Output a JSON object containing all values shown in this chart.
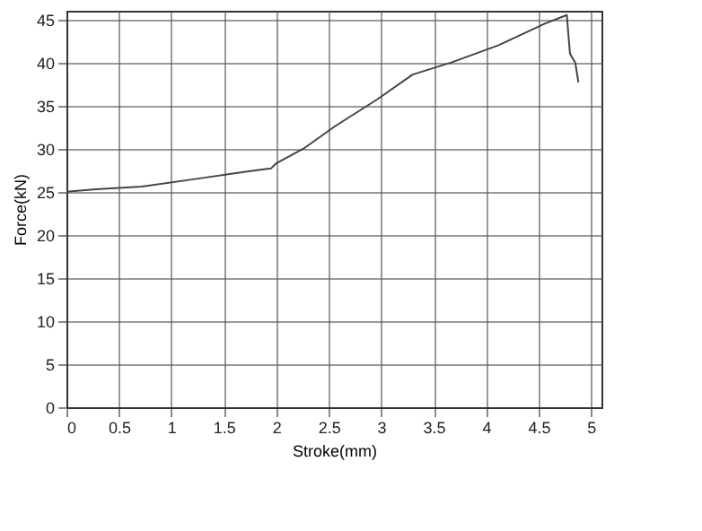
{
  "chart_data": {
    "type": "line",
    "xlabel": "Stroke(mm)",
    "ylabel": "Force(kN)",
    "x": [
      0,
      0.28,
      0.72,
      1.24,
      1.75,
      1.95,
      2.0,
      2.26,
      2.56,
      2.96,
      3.3,
      3.67,
      4.12,
      4.56,
      4.77,
      4.8,
      4.85,
      4.88
    ],
    "series": [
      {
        "color": "#444444",
        "values": [
          25,
          25.3,
          25.6,
          26.5,
          27.4,
          27.7,
          28.3,
          30,
          32.6,
          35.7,
          38.6,
          40,
          42,
          44.5,
          45.5,
          41,
          40,
          37.7
        ]
      }
    ],
    "xlim": [
      0,
      5.1
    ],
    "xticks": [
      0,
      0.5,
      1,
      1.5,
      2,
      2.5,
      3,
      3.5,
      4,
      4.5,
      5
    ],
    "ylim": [
      0,
      46
    ],
    "yticks": [
      0,
      5,
      10,
      15,
      20,
      25,
      30,
      35,
      40,
      45
    ],
    "grid": true,
    "marker": "none",
    "line_style": "solid"
  }
}
